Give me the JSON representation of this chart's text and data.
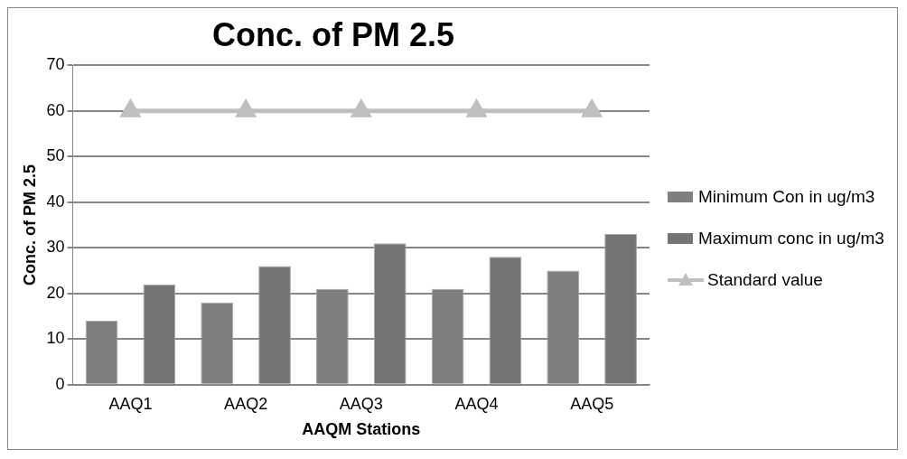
{
  "chart_data": {
    "type": "bar",
    "title": "Conc. of PM 2.5",
    "xlabel": "AAQM Stations",
    "ylabel": "Conc. of PM 2.5",
    "categories": [
      "AAQ1",
      "AAQ2",
      "AAQ3",
      "AAQ4",
      "AAQ5"
    ],
    "series": [
      {
        "name": "Minimum Con in ug/m3",
        "color": "#7f7f7f",
        "values": [
          14,
          18,
          21,
          21,
          25
        ]
      },
      {
        "name": "Maximum conc in ug/m3",
        "color": "#747474",
        "values": [
          22,
          26,
          31,
          28,
          33
        ]
      },
      {
        "name": "Standard value",
        "type": "line",
        "color": "#bfbfbf",
        "marker": "triangle",
        "line_style": "solid",
        "values": [
          60,
          60,
          60,
          60,
          60
        ]
      }
    ],
    "ylim": [
      0,
      70
    ],
    "yticks": [
      0,
      10,
      20,
      30,
      40,
      50,
      60,
      70
    ],
    "grid": "y",
    "legend": "right"
  }
}
